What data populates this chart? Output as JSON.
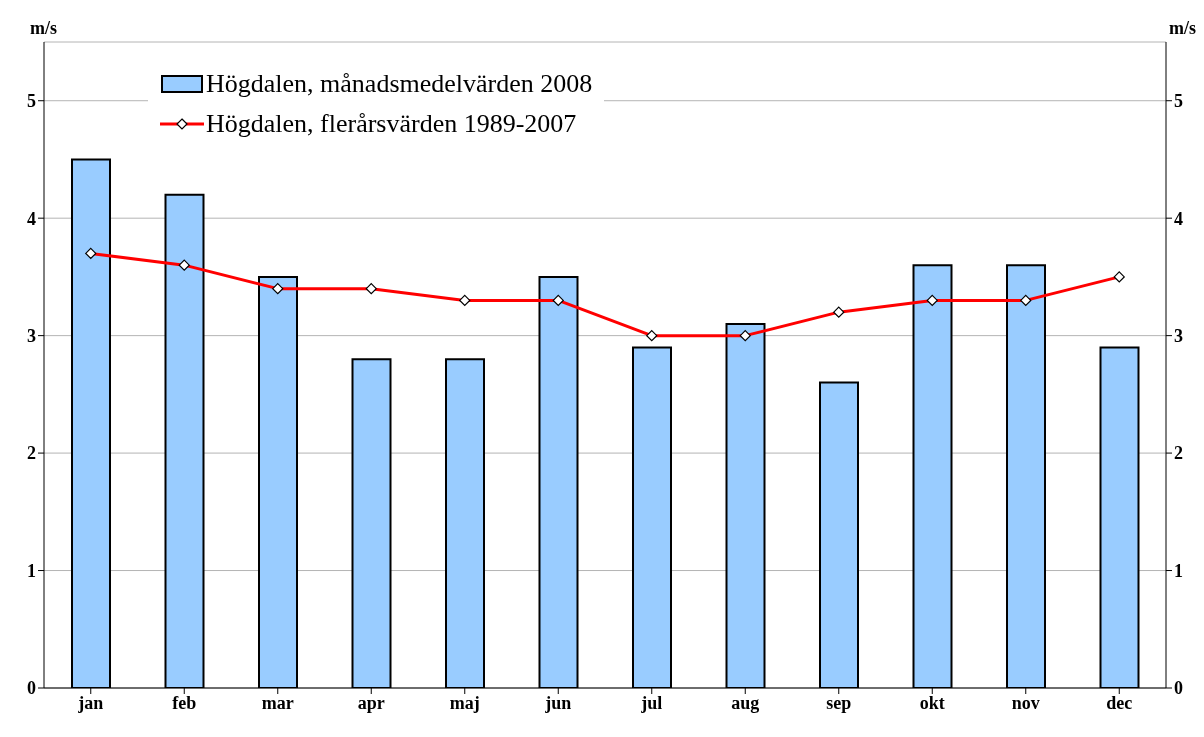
{
  "chart_data": {
    "type": "bar",
    "ylabel": "m/s",
    "y2label": "m/s",
    "categories": [
      "jan",
      "feb",
      "mar",
      "apr",
      "maj",
      "jun",
      "jul",
      "aug",
      "sep",
      "okt",
      "nov",
      "dec"
    ],
    "series": [
      {
        "name": "Högdalen, månadsmedelvärden 2008",
        "color": "#99ccff",
        "values": [
          4.5,
          4.2,
          3.5,
          2.8,
          2.8,
          3.5,
          2.9,
          3.1,
          2.6,
          3.6,
          3.6,
          2.9
        ]
      },
      {
        "name": "Högdalen, flerårsvärden 1989-2007",
        "type": "line",
        "color": "#ff0000",
        "marker": "diamond",
        "values": [
          3.7,
          3.6,
          3.4,
          3.4,
          3.3,
          3.3,
          3.0,
          3.0,
          3.2,
          3.3,
          3.3,
          3.5
        ]
      }
    ],
    "ylim": [
      0,
      5.5
    ],
    "yticks": [
      0,
      1,
      2,
      3,
      4,
      5
    ],
    "y2lim": [
      0,
      5.5
    ],
    "y2ticks": [
      0,
      1,
      2,
      3,
      4,
      5
    ],
    "grid": "y",
    "legend": "top left"
  }
}
